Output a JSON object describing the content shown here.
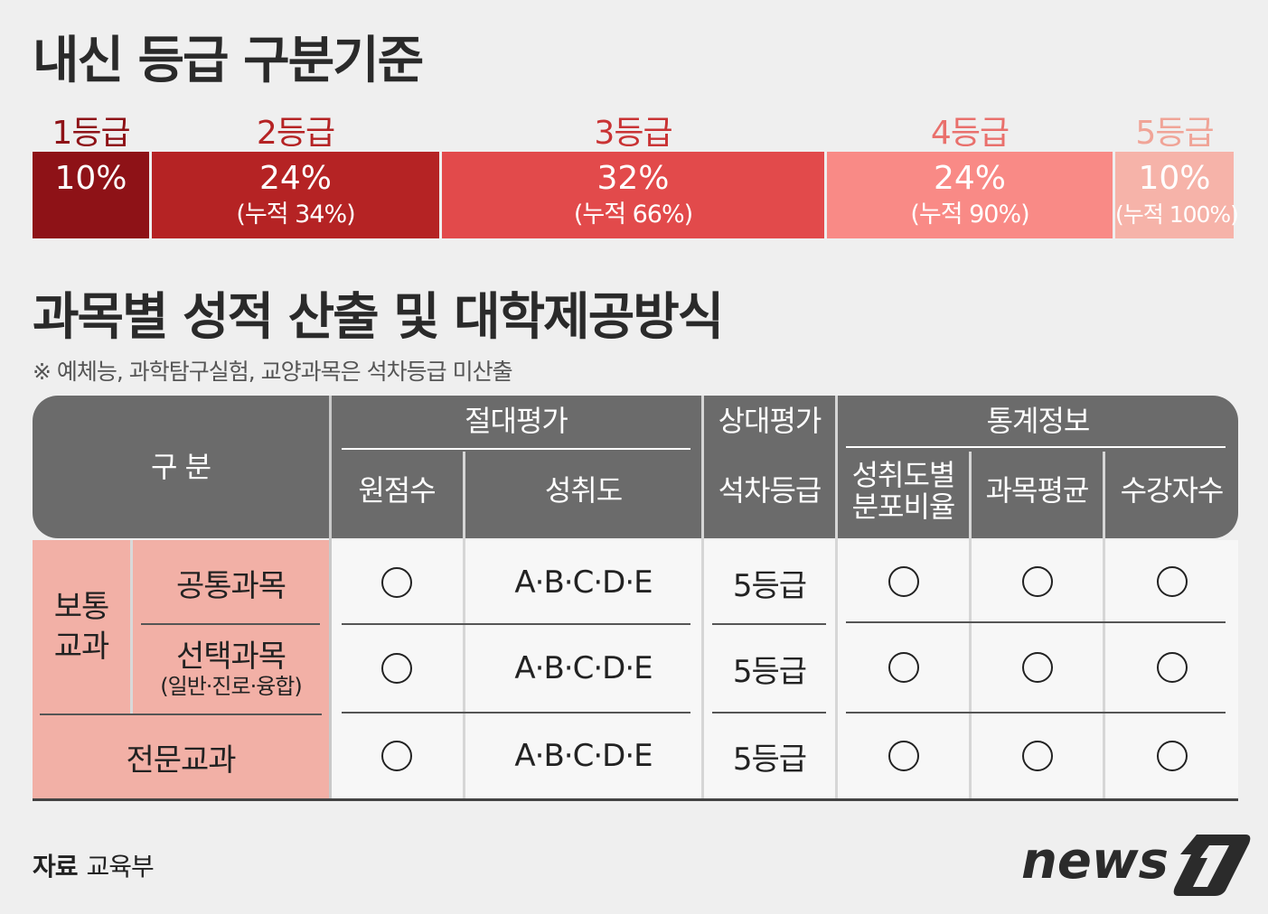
{
  "title_grades": "내신 등급 구분기준",
  "grades": [
    {
      "label": "1등급",
      "percent": "10%",
      "cumulative": "",
      "color": "#8e1217",
      "label_color": "#8e1217"
    },
    {
      "label": "2등급",
      "percent": "24%",
      "cumulative": "(누적 34%)",
      "color": "#b52324",
      "label_color": "#b52324"
    },
    {
      "label": "3등급",
      "percent": "32%",
      "cumulative": "(누적 66%)",
      "color": "#e24a4b",
      "label_color": "#c93334"
    },
    {
      "label": "4등급",
      "percent": "24%",
      "cumulative": "(누적 90%)",
      "color": "#f98a86",
      "label_color": "#e9706c"
    },
    {
      "label": "5등급",
      "percent": "10%",
      "cumulative": "(누적 100%)",
      "color": "#f6b3a9",
      "label_color": "#f0a497"
    }
  ],
  "title_method": "과목별 성적 산출 및 대학제공방식",
  "note": "※ 예체능, 과학탐구실험, 교양과목은 석차등급 미산출",
  "table": {
    "header": {
      "category": "구 분",
      "absolute": "절대평가",
      "relative": "상대평가",
      "stats": "통계정보",
      "raw_score": "원점수",
      "achievement": "성취도",
      "rank_grade": "석차등급",
      "distribution_l1": "성취도별",
      "distribution_l2": "분포비율",
      "subject_avg": "과목평균",
      "enrollment": "수강자수"
    },
    "group_general": "보통\n교과",
    "rows": [
      {
        "name": "공통과목",
        "sub": "",
        "raw": "○",
        "achievement": "A·B·C·D·E",
        "rank": "5등급",
        "dist": "○",
        "avg": "○",
        "count": "○"
      },
      {
        "name": "선택과목",
        "sub": "(일반·진로·융합)",
        "raw": "○",
        "achievement": "A·B·C·D·E",
        "rank": "5등급",
        "dist": "○",
        "avg": "○",
        "count": "○"
      },
      {
        "name": "전문교과",
        "sub": "",
        "raw": "○",
        "achievement": "A·B·C·D·E",
        "rank": "5등급",
        "dist": "○",
        "avg": "○",
        "count": "○"
      }
    ]
  },
  "source_label": "자료",
  "source_value": "교육부",
  "logo_text": "news1"
}
